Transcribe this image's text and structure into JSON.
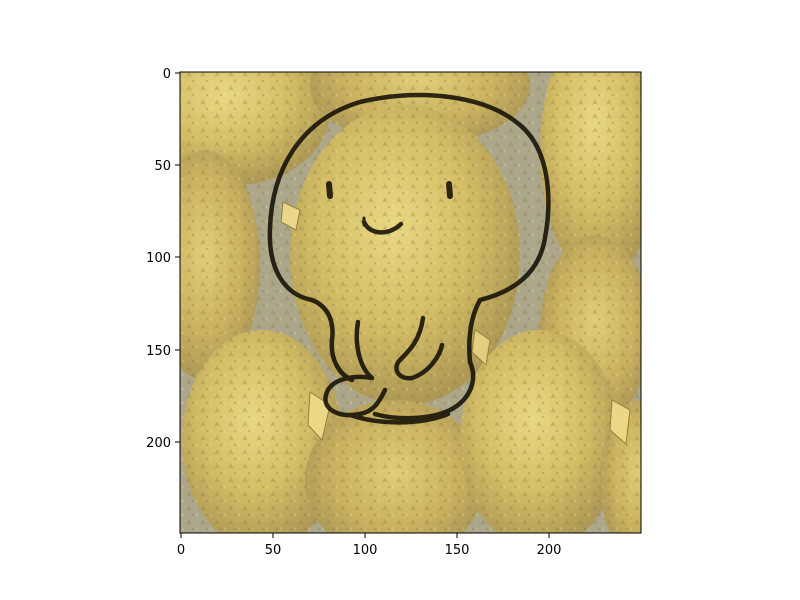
{
  "figure": {
    "image_subject": "durian fruits overlaid with a hand-drawn smiling cartoon figure",
    "x_axis": {
      "ticks": [
        "0",
        "50",
        "100",
        "150",
        "200"
      ],
      "range": [
        0,
        249
      ]
    },
    "y_axis": {
      "ticks": [
        "0",
        "50",
        "100",
        "150",
        "200"
      ],
      "range": [
        0,
        249
      ],
      "inverted": true
    }
  },
  "colors": {
    "background": "#ffffff",
    "axis": "#000000",
    "outline": "#141006",
    "durian_light": "#e9d36a",
    "durian_mid": "#c9ad45",
    "durian_dark": "#8c7a3a",
    "gap_shadow": "#9f9a7e"
  }
}
